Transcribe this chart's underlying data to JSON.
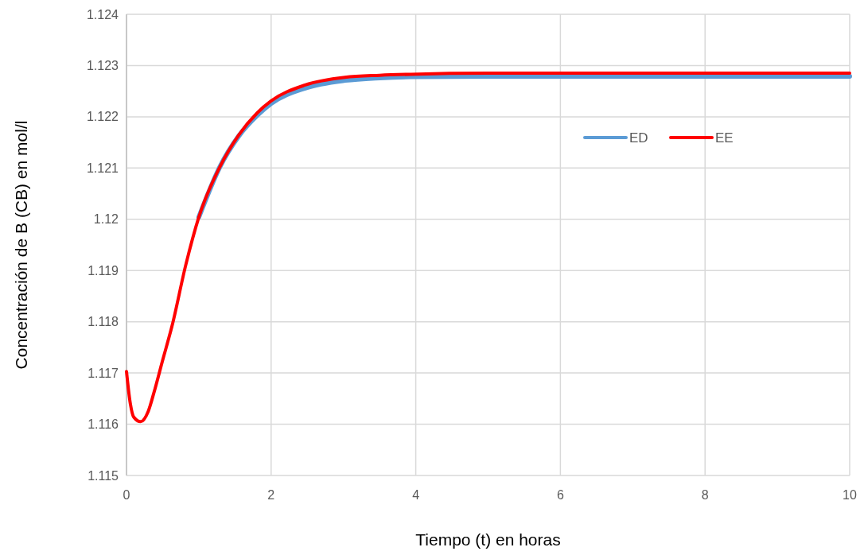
{
  "chart_data": {
    "type": "line",
    "xlabel": "Tiempo (t) en horas",
    "ylabel": "Concentración de B (CB) en mol/l",
    "xlim": [
      0,
      10
    ],
    "xticks": [
      0,
      2,
      4,
      6,
      8,
      10
    ],
    "ylim": [
      1.115,
      1.124
    ],
    "yticks": [
      1.115,
      1.116,
      1.117,
      1.118,
      1.119,
      {
        "value": 1.12,
        "label": "1.12"
      },
      1.121,
      1.122,
      1.123,
      1.124
    ],
    "grid": true,
    "legend": "top right",
    "marker": "none",
    "line_style": "solid",
    "series": [
      {
        "name": "ED",
        "color": "#5b9bd5",
        "x": [
          1.0,
          1.29,
          1.55,
          1.81,
          2.0,
          2.47,
          3.02,
          3.5,
          3.93,
          5,
          6,
          8,
          10
        ],
        "values": [
          1.12004,
          1.12102,
          1.12162,
          1.12203,
          1.12226,
          1.12256,
          1.12271,
          1.12276,
          1.12278,
          1.12279,
          1.12279,
          1.12279,
          1.12279
        ]
      },
      {
        "name": "EE",
        "color": "#ff0000",
        "x": [
          0,
          0.05,
          0.1,
          0.195,
          0.3,
          0.38,
          0.5,
          0.63,
          0.82,
          1.0,
          1.29,
          1.55,
          1.81,
          2.0,
          2.47,
          3.02,
          3.5,
          3.93,
          5,
          6,
          8,
          10
        ],
        "values": [
          1.11703,
          1.11643,
          1.11614,
          1.11605,
          1.11625,
          1.11662,
          1.11725,
          1.11792,
          1.11911,
          1.12004,
          1.12102,
          1.12164,
          1.12208,
          1.12231,
          1.12262,
          1.12277,
          1.12281,
          1.12283,
          1.12285,
          1.12285,
          1.12285,
          1.12285
        ]
      }
    ]
  }
}
